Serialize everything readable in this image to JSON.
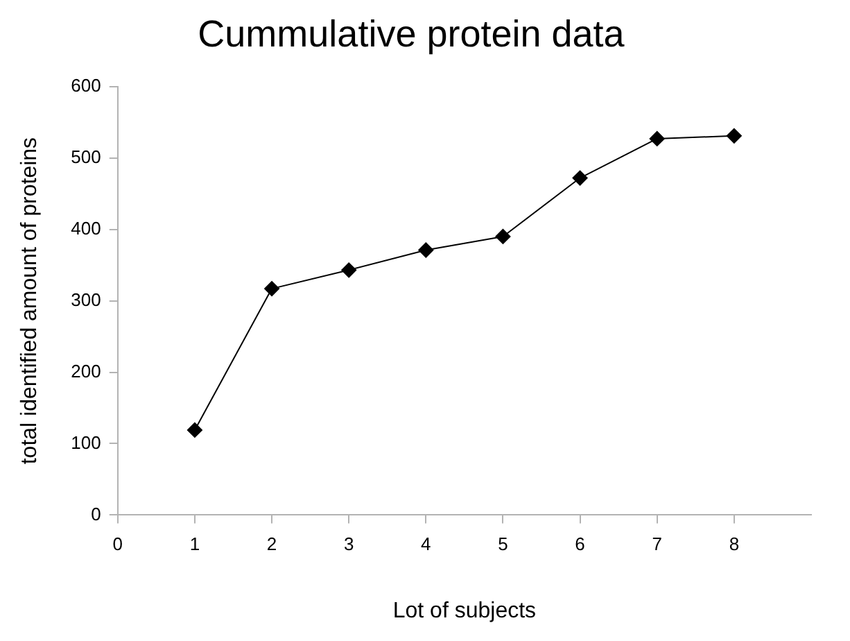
{
  "chart_data": {
    "type": "line",
    "title": "Cummulative protein data",
    "xlabel": "Lot of subjects",
    "ylabel": "total identified amount of proteins",
    "x": [
      1,
      2,
      3,
      4,
      5,
      6,
      7,
      8
    ],
    "series": [
      {
        "color": "#000000",
        "values": [
          119,
          317,
          343,
          371,
          390,
          472,
          527,
          531
        ]
      }
    ],
    "xlim": [
      0,
      9
    ],
    "xticks": [
      0,
      1,
      2,
      3,
      4,
      5,
      6,
      7,
      8
    ],
    "ylim": [
      0,
      600
    ],
    "yticks": [
      0,
      100,
      200,
      300,
      400,
      500,
      600
    ],
    "grid": false,
    "legend": false,
    "marker": "diamond",
    "line_style": "solid"
  }
}
